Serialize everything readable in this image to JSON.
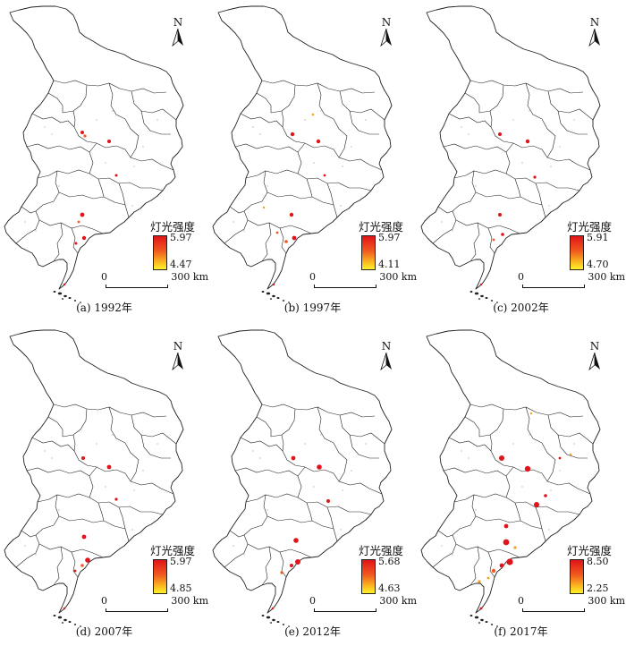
{
  "figure": {
    "panels": [
      {
        "caption": "(a) 1992年",
        "legend_title": "灯光强度",
        "legend_max": "5.97",
        "legend_min": "4.47",
        "scale_zero": "0",
        "scale_distance": "300 km",
        "north": "N"
      },
      {
        "caption": "(b) 1997年",
        "legend_title": "灯光强度",
        "legend_max": "5.97",
        "legend_min": "4.11",
        "scale_zero": "0",
        "scale_distance": "300 km",
        "north": "N"
      },
      {
        "caption": "(c) 2002年",
        "legend_title": "灯光强度",
        "legend_max": "5.91",
        "legend_min": "4.70",
        "scale_zero": "0",
        "scale_distance": "300 km",
        "north": "N"
      },
      {
        "caption": "(d) 2007年",
        "legend_title": "灯光强度",
        "legend_max": "5.97",
        "legend_min": "4.85",
        "scale_zero": "0",
        "scale_distance": "300 km",
        "north": "N"
      },
      {
        "caption": "(e) 2012年",
        "legend_title": "灯光强度",
        "legend_max": "5.68",
        "legend_min": "4.63",
        "scale_zero": "0",
        "scale_distance": "300 km",
        "north": "N"
      },
      {
        "caption": "(f) 2017年",
        "legend_title": "灯光强度",
        "legend_max": "8.50",
        "legend_min": "2.25",
        "scale_zero": "0",
        "scale_distance": "300 km",
        "north": "N"
      }
    ],
    "legend_colors": {
      "high": "#e0141a",
      "mid": "#f15a1e",
      "low": "#fff22a"
    },
    "outline_color": "#222222",
    "icons": {
      "north_arrow": "north-arrow-icon"
    }
  }
}
